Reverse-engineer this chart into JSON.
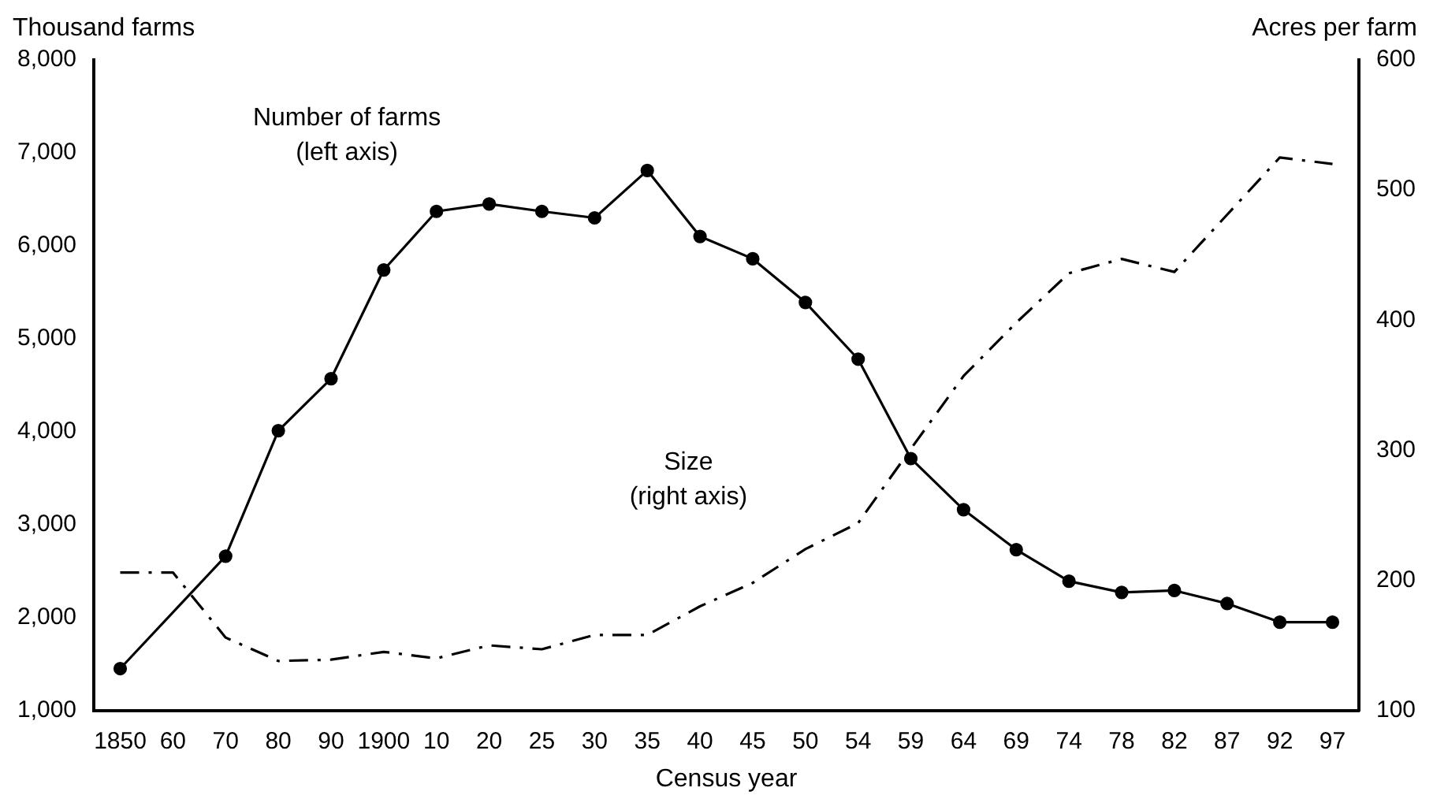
{
  "chart_data": {
    "type": "line",
    "categories": [
      "1850",
      "60",
      "70",
      "80",
      "90",
      "1900",
      "10",
      "20",
      "25",
      "30",
      "35",
      "40",
      "45",
      "50",
      "54",
      "59",
      "64",
      "69",
      "74",
      "78",
      "82",
      "87",
      "92",
      "97"
    ],
    "xlabel": "Census year",
    "ylabel": "Thousand farms",
    "y2label": "Acres per farm",
    "series": [
      {
        "color": "#000000",
        "marker": "circle",
        "line_style": "solid",
        "values": [
          1450,
          null,
          2660,
          4010,
          4570,
          5740,
          6370,
          6450,
          6370,
          6300,
          6810,
          6100,
          5860,
          5390,
          4780,
          3710,
          3160,
          2730,
          2390,
          2270,
          2290,
          2150,
          1950,
          1950
        ]
      },
      {
        "axis": "y2",
        "color": "#000000",
        "marker": "none",
        "line_style": "dashed",
        "values": [
          206,
          206,
          156,
          138,
          139,
          145,
          140,
          150,
          147,
          158,
          158,
          180,
          198,
          224,
          244,
          301,
          357,
          398,
          436,
          447,
          437,
          481,
          525,
          520
        ]
      }
    ],
    "ylim": [
      1000,
      8000
    ],
    "yticks": [
      {
        "value": 1000,
        "label": "1,000"
      },
      {
        "value": 2000,
        "label": "2,000"
      },
      {
        "value": 3000,
        "label": "3,000"
      },
      {
        "value": 4000,
        "label": "4,000"
      },
      {
        "value": 5000,
        "label": "5,000"
      },
      {
        "value": 6000,
        "label": "6,000"
      },
      {
        "value": 7000,
        "label": "7,000"
      },
      {
        "value": 8000,
        "label": "8,000"
      }
    ],
    "y2lim": [
      100,
      600
    ],
    "y2ticks": [
      100,
      200,
      300,
      400,
      500,
      600
    ],
    "annotations": [
      "Number of farms\n(left axis)",
      "Size\n(right axis)"
    ],
    "grid": false,
    "legend": false
  }
}
